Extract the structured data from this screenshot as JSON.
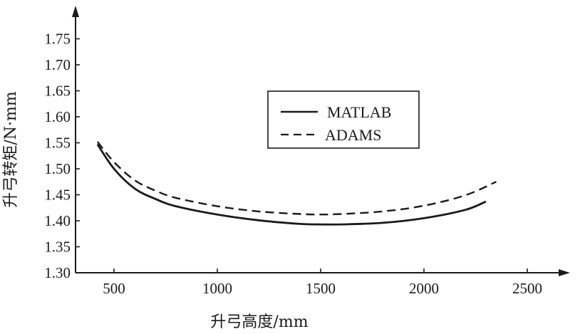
{
  "chart_data": {
    "type": "line",
    "xlabel": "升弓高度/mm",
    "ylabel": "升弓转矩/N·mm",
    "xlim": [
      400,
      2600
    ],
    "ylim": [
      1.3,
      1.8
    ],
    "xticks": [
      500,
      1000,
      1500,
      2000,
      2500
    ],
    "xtick_labels": [
      "500",
      "1000",
      "1500",
      "2000",
      "2500"
    ],
    "yticks": [
      1.3,
      1.35,
      1.4,
      1.45,
      1.5,
      1.55,
      1.6,
      1.65,
      1.7,
      1.75
    ],
    "ytick_labels": [
      "1.30",
      "1.35",
      "1.40",
      "1.45",
      "1.50",
      "1.55",
      "1.60",
      "1.65",
      "1.70",
      "1.75"
    ],
    "grid": false,
    "legend_position": "upper-right",
    "series": [
      {
        "name": "MATLAB",
        "style": "solid",
        "color": "#1a1a1a",
        "x": [
          420,
          500,
          600,
          700,
          800,
          1000,
          1200,
          1400,
          1500,
          1600,
          1800,
          2000,
          2200,
          2300
        ],
        "y": [
          1.547,
          1.5,
          1.462,
          1.442,
          1.428,
          1.412,
          1.401,
          1.394,
          1.393,
          1.393,
          1.396,
          1.405,
          1.421,
          1.437
        ]
      },
      {
        "name": "ADAMS",
        "style": "dashed",
        "color": "#1a1a1a",
        "x": [
          420,
          500,
          600,
          700,
          800,
          1000,
          1200,
          1400,
          1500,
          1600,
          1800,
          2000,
          2200,
          2350
        ],
        "y": [
          1.552,
          1.513,
          1.478,
          1.458,
          1.444,
          1.428,
          1.418,
          1.413,
          1.412,
          1.413,
          1.418,
          1.429,
          1.449,
          1.475
        ]
      }
    ]
  }
}
